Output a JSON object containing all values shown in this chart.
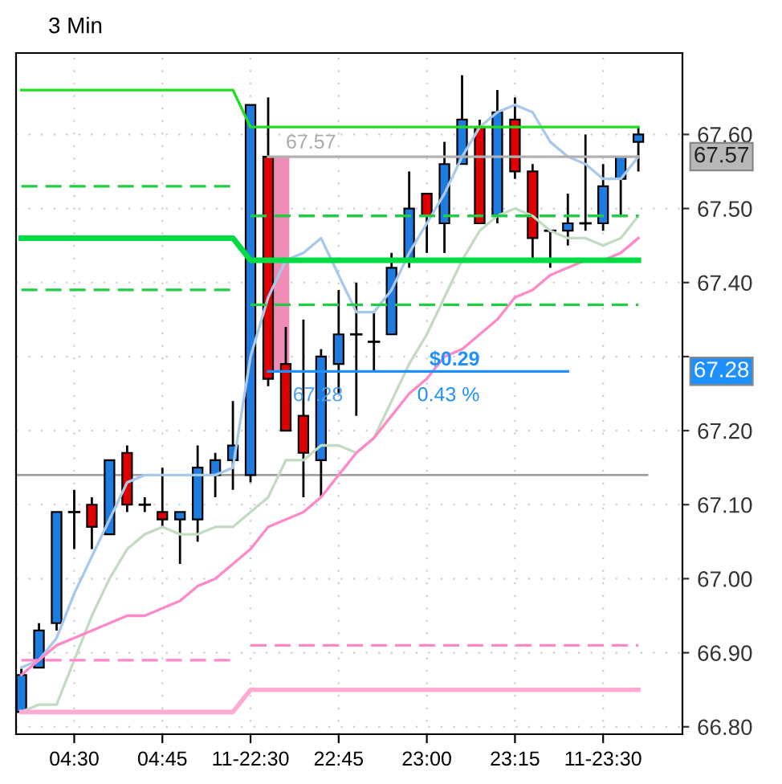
{
  "chart_data": {
    "type": "candlestick",
    "title": "3 Min",
    "categories": [
      null,
      null,
      null,
      "04:30",
      null,
      null,
      null,
      null,
      "04:45",
      null,
      null,
      null,
      null,
      "11-22:30",
      null,
      null,
      null,
      null,
      "22:45",
      null,
      null,
      null,
      null,
      "23:00",
      null,
      null,
      null,
      null,
      "23:15",
      null,
      null,
      null,
      null,
      "11-23:30",
      null,
      null
    ],
    "ohlc": [
      [
        66.82,
        66.88,
        66.82,
        66.87
      ],
      [
        66.88,
        66.94,
        66.88,
        66.93
      ],
      [
        66.94,
        67.09,
        66.93,
        67.09
      ],
      [
        67.09,
        67.12,
        67.04,
        67.09
      ],
      [
        67.1,
        67.11,
        67.04,
        67.07
      ],
      [
        67.06,
        67.16,
        67.06,
        67.16
      ],
      [
        67.17,
        67.18,
        67.09,
        67.1
      ],
      [
        67.1,
        67.11,
        67.09,
        67.1
      ],
      [
        67.09,
        67.15,
        67.07,
        67.08
      ],
      [
        67.08,
        67.09,
        67.02,
        67.09
      ],
      [
        67.08,
        67.18,
        67.05,
        67.15
      ],
      [
        67.14,
        67.17,
        67.11,
        67.16
      ],
      [
        67.16,
        67.24,
        67.12,
        67.18
      ],
      [
        67.14,
        67.64,
        67.13,
        67.64
      ],
      [
        67.57,
        67.65,
        67.26,
        67.27
      ],
      [
        67.29,
        67.34,
        67.2,
        67.2
      ],
      [
        67.22,
        67.35,
        67.11,
        67.17
      ],
      [
        67.16,
        67.31,
        67.11,
        67.3
      ],
      [
        67.29,
        67.39,
        67.25,
        67.33
      ],
      [
        67.33,
        67.4,
        67.22,
        67.33
      ],
      [
        67.32,
        67.36,
        67.28,
        67.32
      ],
      [
        67.33,
        67.44,
        67.33,
        67.42
      ],
      [
        67.43,
        67.55,
        67.42,
        67.5
      ],
      [
        67.52,
        67.52,
        67.44,
        67.49
      ],
      [
        67.48,
        67.59,
        67.44,
        67.56
      ],
      [
        67.56,
        67.68,
        67.56,
        67.62
      ],
      [
        67.61,
        67.62,
        67.48,
        67.48
      ],
      [
        67.49,
        67.66,
        67.48,
        67.63
      ],
      [
        67.62,
        67.65,
        67.54,
        67.55
      ],
      [
        67.55,
        67.56,
        67.43,
        67.46
      ],
      [
        67.47,
        67.47,
        67.42,
        67.47
      ],
      [
        67.47,
        67.52,
        67.45,
        67.48
      ],
      [
        67.48,
        67.6,
        67.47,
        67.48
      ],
      [
        67.48,
        67.56,
        67.47,
        67.53
      ],
      [
        67.54,
        67.57,
        67.49,
        67.57
      ],
      [
        67.59,
        67.61,
        67.55,
        67.6
      ]
    ],
    "colors": [
      "#1e7be0",
      "#1e7be0",
      "#1e7be0",
      "#000000",
      "#e00000",
      "#1e7be0",
      "#e00000",
      "#000000",
      "#e00000",
      "#1e7be0",
      "#1e7be0",
      "#1e7be0",
      "#1e7be0",
      "#1e7be0",
      "#e00000",
      "#e00000",
      "#e00000",
      "#1e7be0",
      "#1e7be0",
      "#000000",
      "#000000",
      "#1e7be0",
      "#1e7be0",
      "#e00000",
      "#1e7be0",
      "#1e7be0",
      "#e00000",
      "#1e7be0",
      "#e00000",
      "#e00000",
      "#000000",
      "#1e7be0",
      "#000000",
      "#1e7be0",
      "#1e7be0",
      "#1e7be0"
    ],
    "series": [
      {
        "type": "line",
        "color": "#a8c8ec",
        "line_style": "solid",
        "values": [
          66.88,
          66.89,
          66.92,
          66.98,
          67.03,
          67.08,
          67.13,
          67.14,
          67.14,
          67.14,
          67.14,
          67.14,
          67.15,
          67.3,
          67.38,
          67.43,
          67.44,
          67.46,
          67.41,
          67.36,
          67.36,
          67.39,
          67.44,
          67.48,
          67.52,
          67.57,
          67.61,
          67.63,
          67.64,
          67.63,
          67.59,
          67.57,
          67.56,
          67.54,
          67.54,
          67.57
        ]
      },
      {
        "type": "line",
        "color": "#c2dcc2",
        "line_style": "solid",
        "values": [
          66.82,
          66.83,
          66.83,
          66.89,
          66.95,
          67.0,
          67.04,
          67.06,
          67.07,
          67.06,
          67.06,
          67.07,
          67.07,
          67.09,
          67.11,
          67.16,
          67.16,
          67.18,
          67.18,
          67.17,
          67.19,
          67.24,
          67.29,
          67.33,
          67.38,
          67.43,
          67.47,
          67.49,
          67.5,
          67.49,
          67.47,
          67.46,
          67.46,
          67.45,
          67.46,
          67.49
        ]
      },
      {
        "type": "line",
        "color": "#ff88c8",
        "line_style": "solid",
        "values": [
          66.87,
          66.89,
          66.91,
          66.92,
          66.93,
          66.94,
          66.95,
          66.95,
          66.96,
          66.97,
          66.99,
          67.0,
          67.02,
          67.04,
          67.07,
          67.08,
          67.09,
          67.11,
          67.14,
          67.17,
          67.19,
          67.22,
          67.25,
          67.27,
          67.3,
          67.31,
          67.33,
          67.35,
          67.38,
          67.39,
          67.41,
          67.42,
          67.43,
          67.43,
          67.44,
          67.46
        ]
      },
      {
        "type": "line",
        "color": "#22dd22",
        "line_style": "solid",
        "values": [
          67.66,
          67.66,
          67.66,
          67.66,
          67.66,
          67.66,
          67.66,
          67.66,
          67.66,
          67.66,
          67.66,
          67.66,
          67.66,
          67.61,
          67.61,
          67.61,
          67.61,
          67.61,
          67.61,
          67.61,
          67.61,
          67.61,
          67.61,
          67.61,
          67.61,
          67.61,
          67.61,
          67.61,
          67.61,
          67.61,
          67.61,
          67.61,
          67.61,
          67.61,
          67.61,
          67.61
        ]
      },
      {
        "type": "line",
        "color": "#00dd44",
        "line_style": "solid",
        "values": [
          67.46,
          67.46,
          67.46,
          67.46,
          67.46,
          67.46,
          67.46,
          67.46,
          67.46,
          67.46,
          67.46,
          67.46,
          67.46,
          67.43,
          67.43,
          67.43,
          67.43,
          67.43,
          67.43,
          67.43,
          67.43,
          67.43,
          67.43,
          67.43,
          67.43,
          67.43,
          67.43,
          67.43,
          67.43,
          67.43,
          67.43,
          67.43,
          67.43,
          67.43,
          67.43,
          67.43
        ]
      },
      {
        "type": "line",
        "color": "#22cc44",
        "line_style": "dashed",
        "values": [
          67.53,
          67.53,
          67.53,
          67.53,
          67.53,
          67.53,
          67.53,
          67.53,
          67.53,
          67.53,
          67.53,
          67.53,
          67.53,
          null,
          null,
          null,
          null,
          null,
          null,
          null,
          null,
          null,
          null,
          null,
          null,
          null,
          null,
          null,
          null,
          null,
          null,
          null,
          null,
          null,
          null,
          null
        ]
      },
      {
        "type": "line",
        "color": "#22cc44",
        "line_style": "dashed",
        "values": [
          null,
          null,
          null,
          null,
          null,
          null,
          null,
          null,
          null,
          null,
          null,
          null,
          null,
          67.49,
          67.49,
          67.49,
          67.49,
          67.49,
          67.49,
          67.49,
          67.49,
          67.49,
          67.49,
          67.49,
          67.49,
          67.49,
          67.49,
          67.49,
          67.49,
          67.49,
          67.49,
          67.49,
          67.49,
          67.49,
          67.49,
          67.49
        ]
      },
      {
        "type": "line",
        "color": "#22cc44",
        "line_style": "dashed",
        "values": [
          67.39,
          67.39,
          67.39,
          67.39,
          67.39,
          67.39,
          67.39,
          67.39,
          67.39,
          67.39,
          67.39,
          67.39,
          67.39,
          null,
          null,
          null,
          null,
          null,
          null,
          null,
          null,
          null,
          null,
          null,
          null,
          null,
          null,
          null,
          null,
          null,
          null,
          null,
          null,
          null,
          null,
          null
        ]
      },
      {
        "type": "line",
        "color": "#22cc44",
        "line_style": "dashed",
        "values": [
          null,
          null,
          null,
          null,
          null,
          null,
          null,
          null,
          null,
          null,
          null,
          null,
          null,
          67.37,
          67.37,
          67.37,
          67.37,
          67.37,
          67.37,
          67.37,
          67.37,
          67.37,
          67.37,
          67.37,
          67.37,
          67.37,
          67.37,
          67.37,
          67.37,
          67.37,
          67.37,
          67.37,
          67.37,
          67.37,
          67.37,
          67.37
        ]
      },
      {
        "type": "line",
        "color": "#ffaad4",
        "line_style": "solid",
        "values": [
          66.82,
          66.82,
          66.82,
          66.82,
          66.82,
          66.82,
          66.82,
          66.82,
          66.82,
          66.82,
          66.82,
          66.82,
          66.82,
          66.85,
          66.85,
          66.85,
          66.85,
          66.85,
          66.85,
          66.85,
          66.85,
          66.85,
          66.85,
          66.85,
          66.85,
          66.85,
          66.85,
          66.85,
          66.85,
          66.85,
          66.85,
          66.85,
          66.85,
          66.85,
          66.85,
          66.85
        ]
      },
      {
        "type": "line",
        "color": "#ff88cc",
        "line_style": "dashed",
        "values": [
          66.89,
          66.89,
          66.89,
          66.89,
          66.89,
          66.89,
          66.89,
          66.89,
          66.89,
          66.89,
          66.89,
          66.89,
          66.89,
          null,
          null,
          null,
          null,
          null,
          null,
          null,
          null,
          null,
          null,
          null,
          null,
          null,
          null,
          null,
          null,
          null,
          null,
          null,
          null,
          null,
          null,
          null
        ]
      },
      {
        "type": "line",
        "color": "#ff88cc",
        "line_style": "dashed",
        "values": [
          null,
          null,
          null,
          null,
          null,
          null,
          null,
          null,
          null,
          null,
          null,
          null,
          null,
          66.91,
          66.91,
          66.91,
          66.91,
          66.91,
          66.91,
          66.91,
          66.91,
          66.91,
          66.91,
          66.91,
          66.91,
          66.91,
          66.91,
          66.91,
          66.91,
          66.91,
          66.91,
          66.91,
          66.91,
          66.91,
          66.91,
          66.91
        ]
      },
      {
        "type": "line",
        "color": "#b0b0b0",
        "line_style": "solid",
        "values": [
          null,
          null,
          null,
          null,
          null,
          null,
          null,
          null,
          null,
          null,
          null,
          null,
          null,
          null,
          67.57,
          67.57,
          67.57,
          67.57,
          67.57,
          67.57,
          67.57,
          67.57,
          67.57,
          67.57,
          67.57,
          67.57,
          67.57,
          67.57,
          67.57,
          67.57,
          67.57,
          67.57,
          67.57,
          67.57,
          67.57,
          67.57
        ]
      },
      {
        "type": "line",
        "color": "#1e90ff",
        "line_style": "solid",
        "values": [
          null,
          null,
          null,
          null,
          null,
          null,
          null,
          null,
          null,
          null,
          null,
          null,
          null,
          null,
          67.28,
          67.28,
          67.28,
          67.28,
          67.28,
          67.28,
          67.28,
          67.28,
          67.28,
          67.28,
          67.28,
          67.28,
          67.28,
          67.28,
          67.28,
          67.28,
          67.28,
          67.28,
          null,
          null,
          null,
          null
        ]
      },
      {
        "type": "bar",
        "color": "#f08cb8",
        "base": [
          null,
          null,
          null,
          null,
          null,
          null,
          null,
          null,
          null,
          null,
          null,
          null,
          null,
          null,
          67.28,
          null,
          null,
          null,
          null,
          null,
          null,
          null,
          null,
          null,
          null,
          null,
          null,
          null,
          null,
          null,
          null,
          null,
          null,
          null,
          null,
          null
        ],
        "values": [
          null,
          null,
          null,
          null,
          null,
          null,
          null,
          null,
          null,
          null,
          null,
          null,
          null,
          null,
          0.29,
          null,
          null,
          null,
          null,
          null,
          null,
          null,
          null,
          null,
          null,
          null,
          null,
          null,
          null,
          null,
          null,
          null,
          null,
          null,
          null,
          null
        ]
      }
    ],
    "ref_lines": [
      {
        "axis": "y",
        "value": 67.14,
        "color": "#a0a0a0"
      }
    ],
    "annotations": [
      "67.57",
      "67.28",
      {
        "text": "$0.29",
        "y": 67.28
      },
      {
        "text": "0.43 %",
        "y": 67.28
      },
      "67.57",
      "67.28"
    ],
    "ylim": [
      66.79,
      67.71
    ],
    "yticks": [
      {
        "value": 66.8,
        "label": "66.80"
      },
      {
        "value": 66.9,
        "label": "66.90"
      },
      {
        "value": 67.0,
        "label": "67.00"
      },
      {
        "value": 67.1,
        "label": "67.10"
      },
      {
        "value": 67.2,
        "label": "67.20"
      },
      {
        "value": 67.3,
        "label": null
      },
      {
        "value": 67.4,
        "label": "67.40"
      },
      {
        "value": 67.5,
        "label": "67.50"
      },
      {
        "value": 67.6,
        "label": "67.60"
      }
    ],
    "grid": true,
    "legend": false
  }
}
